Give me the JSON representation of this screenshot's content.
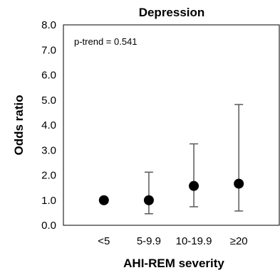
{
  "chart_data": {
    "type": "scatter",
    "title": "Depression",
    "xlabel": "AHI-REM severity",
    "ylabel": "Odds ratio",
    "categories": [
      "<5",
      "5-9.9",
      "10-19.9",
      "≥20"
    ],
    "values": [
      1.0,
      1.0,
      1.57,
      1.66
    ],
    "ci_lower": [
      null,
      0.46,
      0.74,
      0.57
    ],
    "ci_upper": [
      null,
      2.12,
      3.25,
      4.82
    ],
    "ylim": [
      0,
      8
    ],
    "yticks": [
      "0.0",
      "1.0",
      "2.0",
      "3.0",
      "4.0",
      "5.0",
      "6.0",
      "7.0",
      "8.0"
    ],
    "annotation": "p-trend = 0.541",
    "grid": false,
    "colors": {
      "marker": "#000000",
      "error_bar": "#595959",
      "frame": "#000000"
    }
  }
}
